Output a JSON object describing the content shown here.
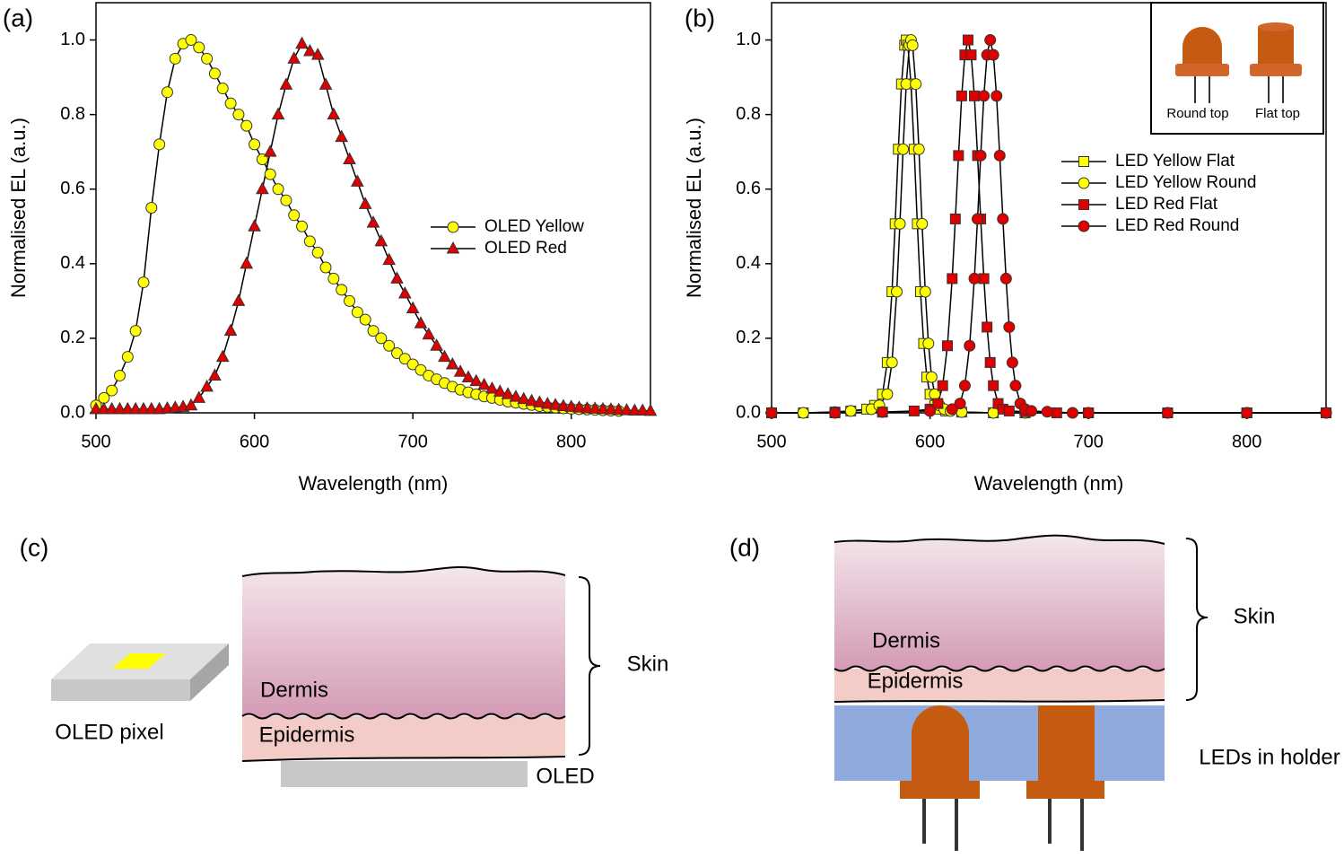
{
  "chart_data": [
    {
      "type": "line",
      "panel": "(a)",
      "x_label": "Wavelength (nm)",
      "y_label": "Normalised EL (a.u.)",
      "xlim": [
        500,
        850
      ],
      "ylim": [
        0,
        1.1
      ],
      "xticks": [
        500,
        600,
        700,
        800
      ],
      "yticks": [
        {
          "value": 0,
          "label": "0.0"
        },
        0.2,
        0.4,
        0.6,
        0.8,
        {
          "value": 1,
          "label": "1.0"
        }
      ],
      "series": [
        {
          "name": "OLED Yellow",
          "color": "#ffff00",
          "marker": "circle",
          "x": [
            500,
            505,
            510,
            515,
            520,
            525,
            530,
            535,
            540,
            545,
            550,
            555,
            560,
            565,
            570,
            575,
            580,
            585,
            590,
            595,
            600,
            605,
            610,
            615,
            620,
            625,
            630,
            635,
            640,
            645,
            650,
            655,
            660,
            665,
            670,
            675,
            680,
            685,
            690,
            695,
            700,
            705,
            710,
            715,
            720,
            725,
            730,
            735,
            740,
            745,
            750,
            755,
            760,
            765,
            770,
            775,
            780,
            785,
            790,
            795,
            800,
            805,
            810,
            815,
            820,
            825,
            830
          ],
          "values": [
            0.02,
            0.04,
            0.06,
            0.1,
            0.15,
            0.22,
            0.35,
            0.55,
            0.72,
            0.86,
            0.95,
            0.99,
            1.0,
            0.98,
            0.95,
            0.91,
            0.87,
            0.83,
            0.8,
            0.77,
            0.72,
            0.68,
            0.64,
            0.6,
            0.57,
            0.53,
            0.5,
            0.46,
            0.43,
            0.39,
            0.36,
            0.33,
            0.3,
            0.27,
            0.25,
            0.22,
            0.2,
            0.18,
            0.16,
            0.145,
            0.13,
            0.115,
            0.1,
            0.09,
            0.08,
            0.07,
            0.062,
            0.055,
            0.05,
            0.044,
            0.04,
            0.035,
            0.03,
            0.027,
            0.024,
            0.021,
            0.018,
            0.016,
            0.014,
            0.012,
            0.011,
            0.01,
            0.009,
            0.008,
            0.007,
            0.006,
            0.005
          ]
        },
        {
          "name": "OLED Red",
          "color": "#e00000",
          "marker": "triangle",
          "x": [
            500,
            505,
            510,
            515,
            520,
            525,
            530,
            535,
            540,
            545,
            550,
            555,
            560,
            565,
            570,
            575,
            580,
            585,
            590,
            595,
            600,
            605,
            610,
            615,
            620,
            625,
            630,
            635,
            640,
            645,
            650,
            655,
            660,
            665,
            670,
            675,
            680,
            685,
            690,
            695,
            700,
            705,
            710,
            715,
            720,
            725,
            730,
            735,
            740,
            745,
            750,
            755,
            760,
            765,
            770,
            775,
            780,
            785,
            790,
            795,
            800,
            805,
            810,
            815,
            820,
            825,
            830,
            835,
            840,
            845,
            850
          ],
          "values": [
            0.01,
            0.01,
            0.01,
            0.01,
            0.01,
            0.01,
            0.01,
            0.01,
            0.01,
            0.012,
            0.014,
            0.016,
            0.02,
            0.04,
            0.07,
            0.1,
            0.15,
            0.22,
            0.3,
            0.4,
            0.5,
            0.6,
            0.7,
            0.8,
            0.88,
            0.95,
            0.99,
            0.97,
            0.96,
            0.88,
            0.8,
            0.74,
            0.68,
            0.62,
            0.56,
            0.51,
            0.46,
            0.41,
            0.36,
            0.32,
            0.28,
            0.24,
            0.21,
            0.18,
            0.15,
            0.13,
            0.11,
            0.095,
            0.085,
            0.075,
            0.065,
            0.057,
            0.05,
            0.043,
            0.037,
            0.032,
            0.028,
            0.024,
            0.021,
            0.018,
            0.016,
            0.014,
            0.012,
            0.011,
            0.01,
            0.009,
            0.008,
            0.007,
            0.006,
            0.006,
            0.005
          ]
        }
      ]
    },
    {
      "type": "line",
      "panel": "(b)",
      "x_label": "Wavelength (nm)",
      "y_label": "Normalised EL (a.u.)",
      "xlim": [
        500,
        850
      ],
      "ylim": [
        0,
        1.1
      ],
      "xticks": [
        500,
        600,
        700,
        800
      ],
      "yticks": [
        {
          "value": 0,
          "label": "0.0"
        },
        0.2,
        0.4,
        0.6,
        0.8,
        {
          "value": 1,
          "label": "1.0"
        }
      ],
      "inset_labels": [
        "Round top",
        "Flat top"
      ],
      "series": [
        {
          "name": "LED Yellow Flat",
          "color": "#ffff00",
          "marker": "square",
          "x": [
            500,
            520,
            540,
            550,
            560,
            565,
            570,
            573,
            576,
            578,
            580,
            582,
            584,
            585,
            586,
            588,
            590,
            592,
            594,
            596,
            598,
            600,
            603,
            606,
            610,
            620,
            640,
            660,
            700,
            750,
            800,
            850
          ],
          "values": [
            0,
            0,
            0.002,
            0.005,
            0.01,
            0.02,
            0.05,
            0.135,
            0.325,
            0.507,
            0.707,
            0.882,
            0.986,
            1,
            0.986,
            0.882,
            0.707,
            0.507,
            0.325,
            0.186,
            0.096,
            0.05,
            0.02,
            0.01,
            0.005,
            0.002,
            0,
            0,
            0,
            0,
            0,
            0
          ]
        },
        {
          "name": "LED Yellow Round",
          "color": "#ffff00",
          "marker": "circle",
          "x": [
            500,
            520,
            540,
            550,
            563,
            568,
            573,
            576,
            579,
            581,
            583,
            585,
            587,
            588,
            589,
            591,
            593,
            595,
            597,
            599,
            601,
            603,
            606,
            609,
            613,
            620,
            640,
            660,
            700,
            750,
            800,
            850
          ],
          "values": [
            0,
            0,
            0.002,
            0.005,
            0.01,
            0.02,
            0.05,
            0.135,
            0.325,
            0.507,
            0.707,
            0.882,
            0.986,
            1,
            0.986,
            0.882,
            0.707,
            0.507,
            0.325,
            0.186,
            0.096,
            0.05,
            0.02,
            0.01,
            0.005,
            0.002,
            0,
            0,
            0,
            0,
            0,
            0
          ]
        },
        {
          "name": "LED Red Flat",
          "color": "#e00000",
          "marker": "square",
          "x": [
            500,
            540,
            570,
            590,
            600,
            605,
            608,
            611,
            614,
            616,
            618,
            620,
            622,
            624,
            626,
            628,
            630,
            632,
            634,
            636,
            638,
            640,
            643,
            646,
            650,
            660,
            680,
            700,
            750,
            800,
            850
          ],
          "values": [
            0,
            0,
            0.002,
            0.005,
            0.01,
            0.025,
            0.073,
            0.18,
            0.36,
            0.52,
            0.69,
            0.85,
            0.96,
            1,
            0.96,
            0.85,
            0.69,
            0.52,
            0.36,
            0.23,
            0.135,
            0.073,
            0.025,
            0.01,
            0.005,
            0.003,
            0,
            0,
            0,
            0,
            0
          ]
        },
        {
          "name": "LED Red Round",
          "color": "#e00000",
          "marker": "circle",
          "x": [
            500,
            540,
            570,
            600,
            614,
            619,
            622,
            625,
            628,
            630,
            632,
            634,
            636,
            638,
            640,
            642,
            644,
            646,
            648,
            650,
            652,
            654,
            657,
            660,
            664,
            674,
            690,
            700,
            750,
            800,
            850
          ],
          "values": [
            0,
            0,
            0.002,
            0.005,
            0.01,
            0.025,
            0.073,
            0.18,
            0.36,
            0.52,
            0.69,
            0.85,
            0.96,
            1,
            0.96,
            0.85,
            0.69,
            0.52,
            0.36,
            0.23,
            0.135,
            0.073,
            0.025,
            0.01,
            0.005,
            0.003,
            0,
            0,
            0,
            0,
            0
          ]
        }
      ]
    }
  ],
  "diagrams": [
    {
      "panel": "(c)",
      "device": "OLED pixel",
      "dermis": "Dermis",
      "epidermis": "Epidermis",
      "skin": "Skin",
      "source": "OLED"
    },
    {
      "panel": "(d)",
      "dermis": "Dermis",
      "epidermis": "Epidermis",
      "skin": "Skin",
      "source": "LEDs in holder"
    }
  ]
}
